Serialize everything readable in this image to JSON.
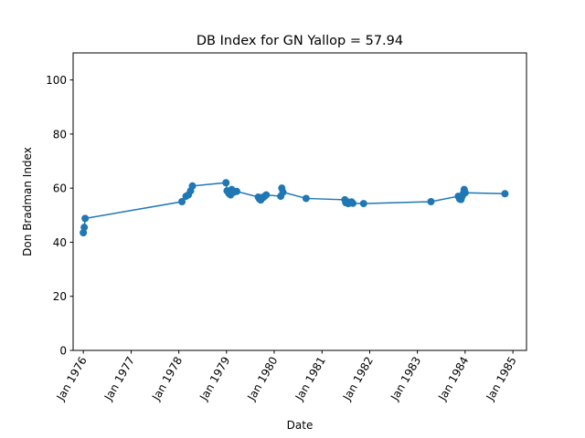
{
  "chart_data": {
    "type": "line",
    "title": "DB Index for GN Yallop = 57.94",
    "xlabel": "Date",
    "ylabel": "Don Bradman Index",
    "ylim": [
      0,
      110
    ],
    "xlim": [
      "1975-10-15",
      "1985-04-15"
    ],
    "yticks": [
      0,
      20,
      40,
      60,
      80,
      100
    ],
    "xticks": [
      {
        "date": "1976-01-01",
        "label": "Jan 1976"
      },
      {
        "date": "1977-01-01",
        "label": "Jan 1977"
      },
      {
        "date": "1978-01-01",
        "label": "Jan 1978"
      },
      {
        "date": "1979-01-01",
        "label": "Jan 1979"
      },
      {
        "date": "1980-01-01",
        "label": "Jan 1980"
      },
      {
        "date": "1981-01-01",
        "label": "Jan 1981"
      },
      {
        "date": "1982-01-01",
        "label": "Jan 1982"
      },
      {
        "date": "1983-01-01",
        "label": "Jan 1983"
      },
      {
        "date": "1984-01-01",
        "label": "Jan 1984"
      },
      {
        "date": "1985-01-01",
        "label": "Jan 1985"
      }
    ],
    "grid": false,
    "series": [
      {
        "color": "#1f77b4",
        "x": [
          "1976-01-01",
          "1976-01-08",
          "1976-01-15",
          "1978-01-25",
          "1978-02-25",
          "1978-03-15",
          "1978-04-01",
          "1978-04-15",
          "1978-12-28",
          "1979-01-05",
          "1979-01-20",
          "1979-02-01",
          "1979-02-10",
          "1979-02-25",
          "1979-03-20",
          "1979-09-01",
          "1979-09-10",
          "1979-09-20",
          "1979-10-01",
          "1979-10-10",
          "1979-10-20",
          "1979-11-01",
          "1980-02-20",
          "1980-02-28",
          "1980-03-08",
          "1980-09-01",
          "1981-06-25",
          "1981-07-02",
          "1981-07-10",
          "1981-07-20",
          "1981-08-01",
          "1981-08-15",
          "1981-08-25",
          "1981-11-15",
          "1983-04-15",
          "1983-11-10",
          "1983-11-20",
          "1983-12-01",
          "1983-12-10",
          "1983-12-20",
          "1983-12-25",
          "1984-01-02",
          "1984-11-01"
        ],
        "y": [
          43.5,
          45.5,
          48.8,
          55,
          57,
          57.5,
          59,
          60.8,
          62,
          59,
          58,
          57.5,
          59.5,
          58.5,
          58.8,
          56.7,
          56,
          55.6,
          56.5,
          56.6,
          57,
          57.5,
          57,
          60,
          58.5,
          56.2,
          55.7,
          54.6,
          55,
          54.3,
          54.5,
          54.9,
          54.4,
          54.3,
          55,
          57,
          56,
          55.8,
          57,
          58.2,
          59.5,
          58.3,
          57.94
        ]
      }
    ]
  }
}
